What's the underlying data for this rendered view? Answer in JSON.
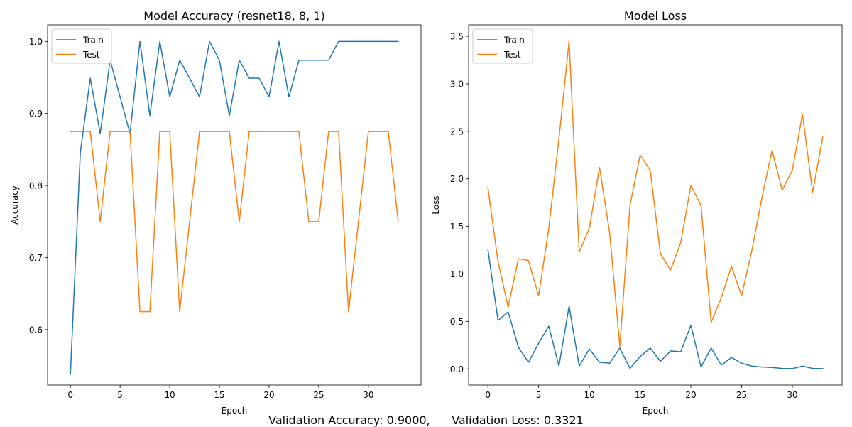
{
  "footer": {
    "accuracy_text": "Validation Accuracy: 0.9000,",
    "loss_text": "Validation Loss: 0.3321"
  },
  "colors": {
    "train": "#1f77b4",
    "test": "#ff7f0e",
    "axis": "#000000"
  },
  "chart_data": [
    {
      "type": "line",
      "title": "Model Accuracy (resnet18, 8, 1)",
      "xlabel": "Epoch",
      "ylabel": "Accuracy",
      "xlim": [
        -2.3,
        35.3
      ],
      "ylim": [
        0.523,
        1.023
      ],
      "xticks": [
        0,
        5,
        10,
        15,
        20,
        25,
        30
      ],
      "yticks": [
        0.6,
        0.7,
        0.8,
        0.9,
        1.0
      ],
      "ytick_labels": [
        "0.6",
        "0.7",
        "0.8",
        "0.9",
        "1.0"
      ],
      "grid": false,
      "legend_position": "top-left",
      "x": [
        0,
        1,
        2,
        3,
        4,
        5,
        6,
        7,
        8,
        9,
        10,
        11,
        12,
        13,
        14,
        15,
        16,
        17,
        18,
        19,
        20,
        21,
        22,
        23,
        24,
        25,
        26,
        27,
        28,
        29,
        30,
        31,
        32,
        33
      ],
      "series": [
        {
          "name": "Train",
          "color": "#1f77b4",
          "values": [
            0.538,
            0.846,
            0.949,
            0.872,
            0.974,
            0.923,
            0.872,
            1.0,
            0.897,
            1.0,
            0.923,
            0.974,
            0.949,
            0.923,
            1.0,
            0.974,
            0.897,
            0.974,
            0.949,
            0.949,
            0.923,
            1.0,
            0.923,
            0.974,
            0.974,
            0.974,
            0.974,
            1.0,
            1.0,
            1.0,
            1.0,
            1.0,
            1.0,
            1.0
          ]
        },
        {
          "name": "Test",
          "color": "#ff7f0e",
          "values": [
            0.875,
            0.875,
            0.875,
            0.75,
            0.875,
            0.875,
            0.875,
            0.625,
            0.625,
            0.875,
            0.875,
            0.625,
            0.75,
            0.875,
            0.875,
            0.875,
            0.875,
            0.75,
            0.875,
            0.875,
            0.875,
            0.875,
            0.875,
            0.875,
            0.75,
            0.75,
            0.875,
            0.875,
            0.625,
            0.75,
            0.875,
            0.875,
            0.875,
            0.75
          ]
        }
      ]
    },
    {
      "type": "line",
      "title": "Model Loss",
      "xlabel": "Epoch",
      "ylabel": "Loss",
      "xlim": [
        -1.9,
        34.9
      ],
      "ylim": [
        -0.17,
        3.62
      ],
      "xticks": [
        0,
        5,
        10,
        15,
        20,
        25,
        30
      ],
      "yticks": [
        0.0,
        0.5,
        1.0,
        1.5,
        2.0,
        2.5,
        3.0,
        3.5
      ],
      "ytick_labels": [
        "0.0",
        "0.5",
        "1.0",
        "1.5",
        "2.0",
        "2.5",
        "3.0",
        "3.5"
      ],
      "grid": false,
      "legend_position": "top-left",
      "x": [
        0,
        1,
        2,
        3,
        4,
        5,
        6,
        7,
        8,
        9,
        10,
        11,
        12,
        13,
        14,
        15,
        16,
        17,
        18,
        19,
        20,
        21,
        22,
        23,
        24,
        25,
        26,
        27,
        28,
        29,
        30,
        31,
        32,
        33
      ],
      "series": [
        {
          "name": "Train",
          "color": "#1f77b4",
          "values": [
            1.26,
            0.51,
            0.6,
            0.23,
            0.07,
            0.27,
            0.45,
            0.03,
            0.66,
            0.03,
            0.21,
            0.07,
            0.06,
            0.22,
            0.005,
            0.13,
            0.22,
            0.08,
            0.19,
            0.18,
            0.46,
            0.02,
            0.22,
            0.04,
            0.12,
            0.06,
            0.03,
            0.02,
            0.015,
            0.005,
            0.003,
            0.03,
            0.005,
            0.003
          ]
        },
        {
          "name": "Test",
          "color": "#ff7f0e",
          "values": [
            1.91,
            1.13,
            0.65,
            1.16,
            1.14,
            0.77,
            1.48,
            2.42,
            3.45,
            1.23,
            1.48,
            2.12,
            1.43,
            0.24,
            1.72,
            2.25,
            2.09,
            1.21,
            1.04,
            1.33,
            1.93,
            1.72,
            0.49,
            0.75,
            1.08,
            0.77,
            1.24,
            1.8,
            2.3,
            1.88,
            2.09,
            2.68,
            1.86,
            2.44
          ]
        }
      ]
    }
  ]
}
